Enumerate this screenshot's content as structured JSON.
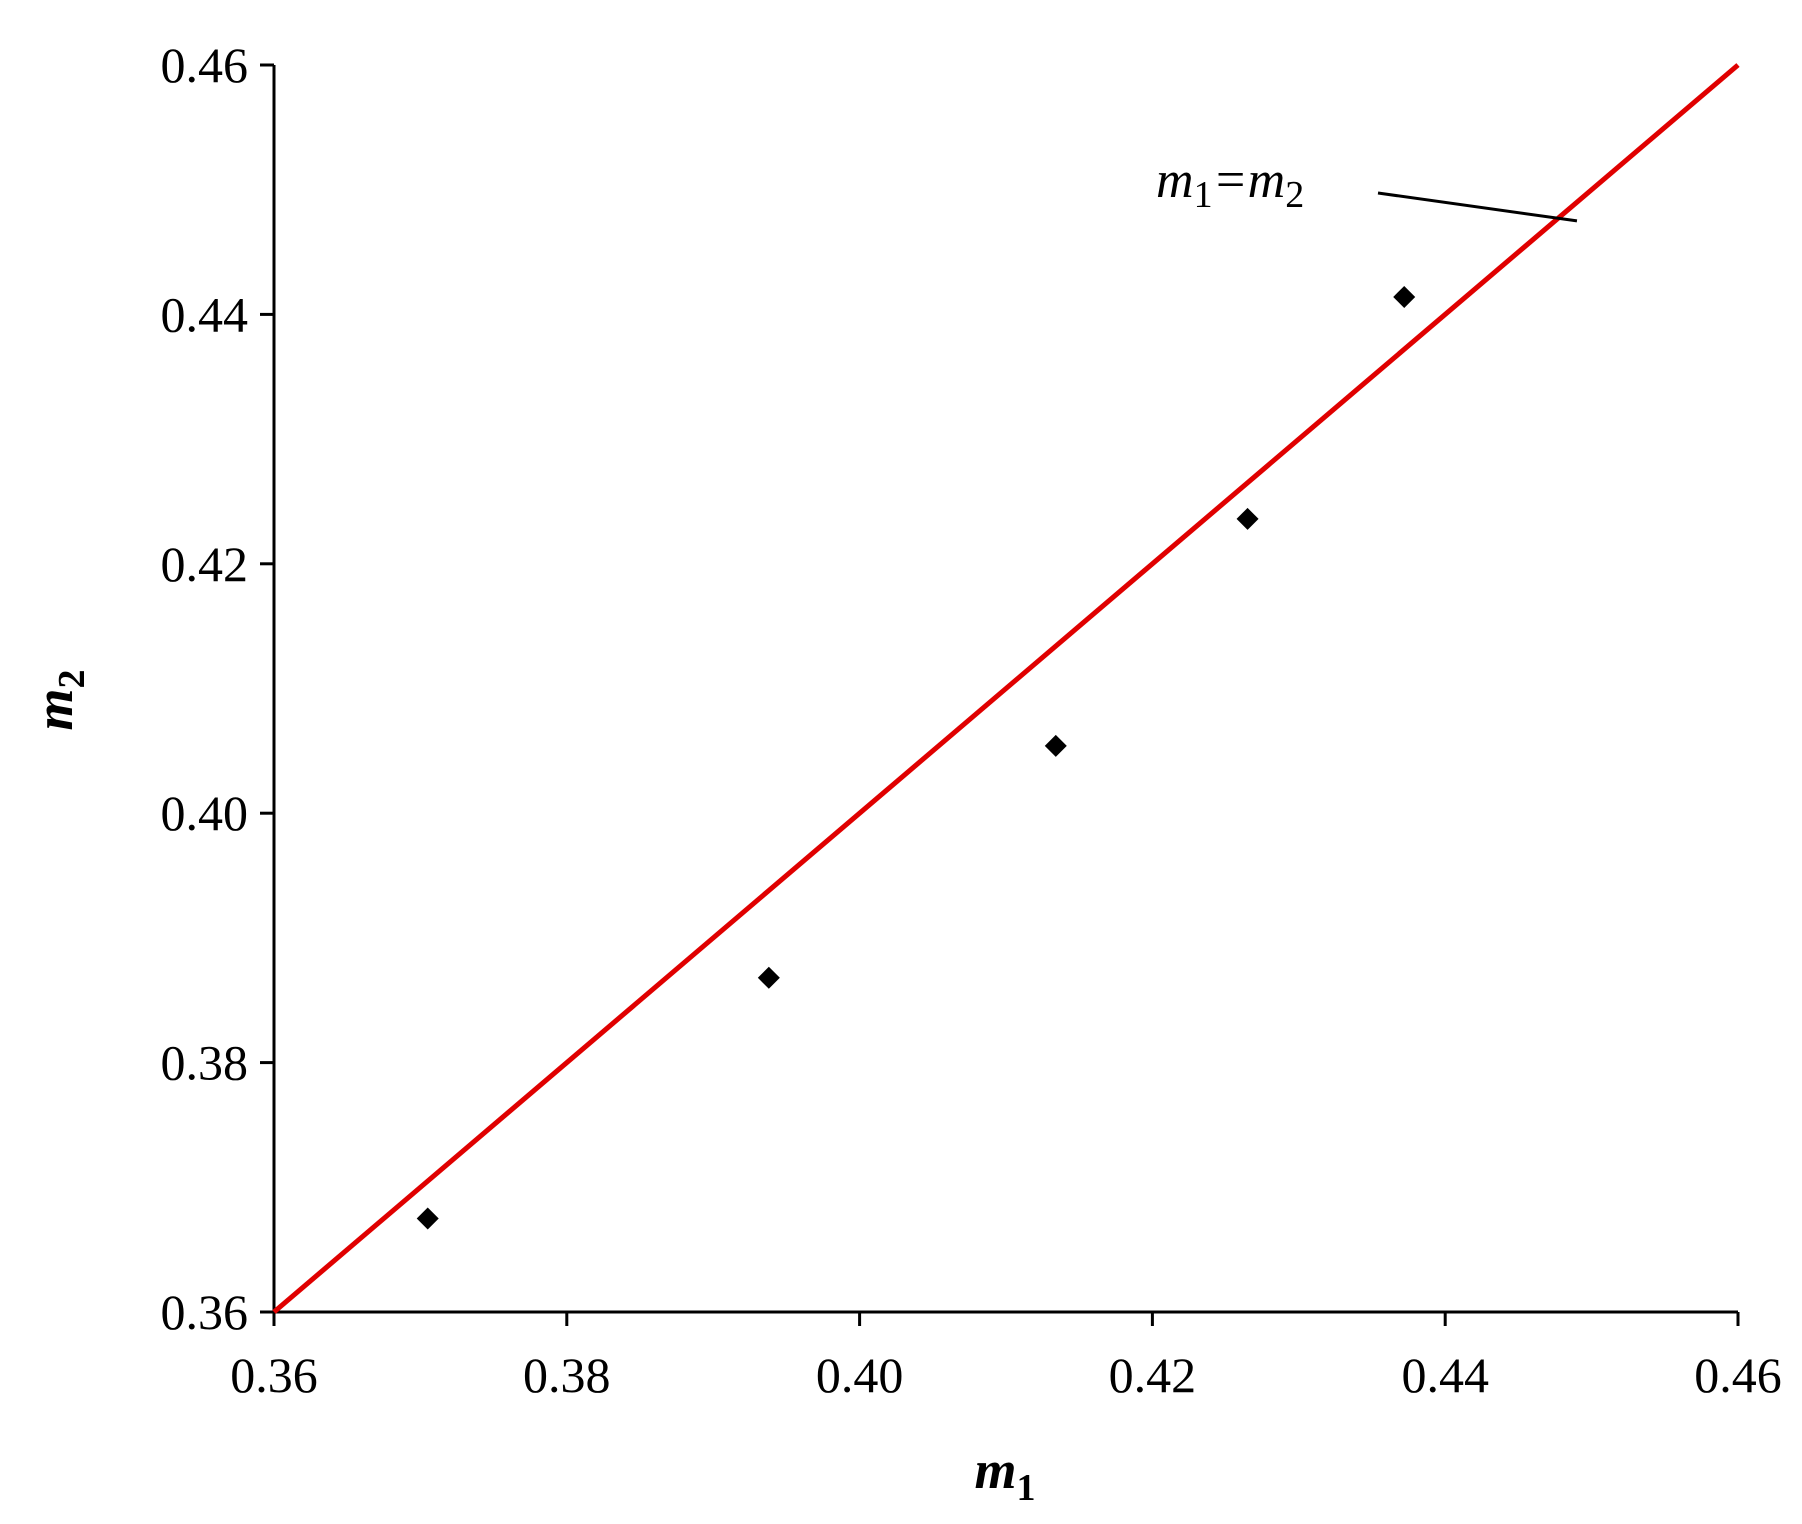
{
  "chart_data": {
    "type": "scatter",
    "title": "",
    "xlabel": {
      "base": "m",
      "sub": "1"
    },
    "ylabel": {
      "base": "m",
      "sub": "2"
    },
    "xlim": [
      0.36,
      0.46
    ],
    "ylim": [
      0.36,
      0.46
    ],
    "x_ticks": [
      0.36,
      0.38,
      0.4,
      0.42,
      0.44,
      0.46
    ],
    "y_ticks": [
      0.36,
      0.38,
      0.4,
      0.42,
      0.44,
      0.46
    ],
    "x_tick_labels": [
      "0.36",
      "0.38",
      "0.40",
      "0.42",
      "0.44",
      "0.46"
    ],
    "y_tick_labels": [
      "0.36",
      "0.38",
      "0.40",
      "0.42",
      "0.44",
      "0.46"
    ],
    "grid": false,
    "series": [
      {
        "marker": "diamond",
        "color": "#000000",
        "points": [
          {
            "x": 0.3705,
            "y": 0.3675
          },
          {
            "x": 0.3938,
            "y": 0.3868
          },
          {
            "x": 0.4134,
            "y": 0.4054
          },
          {
            "x": 0.4265,
            "y": 0.4236
          },
          {
            "x": 0.4372,
            "y": 0.4414
          }
        ]
      }
    ],
    "reference_line": {
      "from": [
        0.36,
        0.36
      ],
      "to": [
        0.46,
        0.46
      ],
      "color": "#e00000"
    },
    "annotation": {
      "lhs_base": "m",
      "lhs_sub": "1",
      "eq": "=",
      "rhs_base": "m",
      "rhs_sub": "2",
      "points_to": [
        0.449,
        0.4475
      ]
    }
  }
}
